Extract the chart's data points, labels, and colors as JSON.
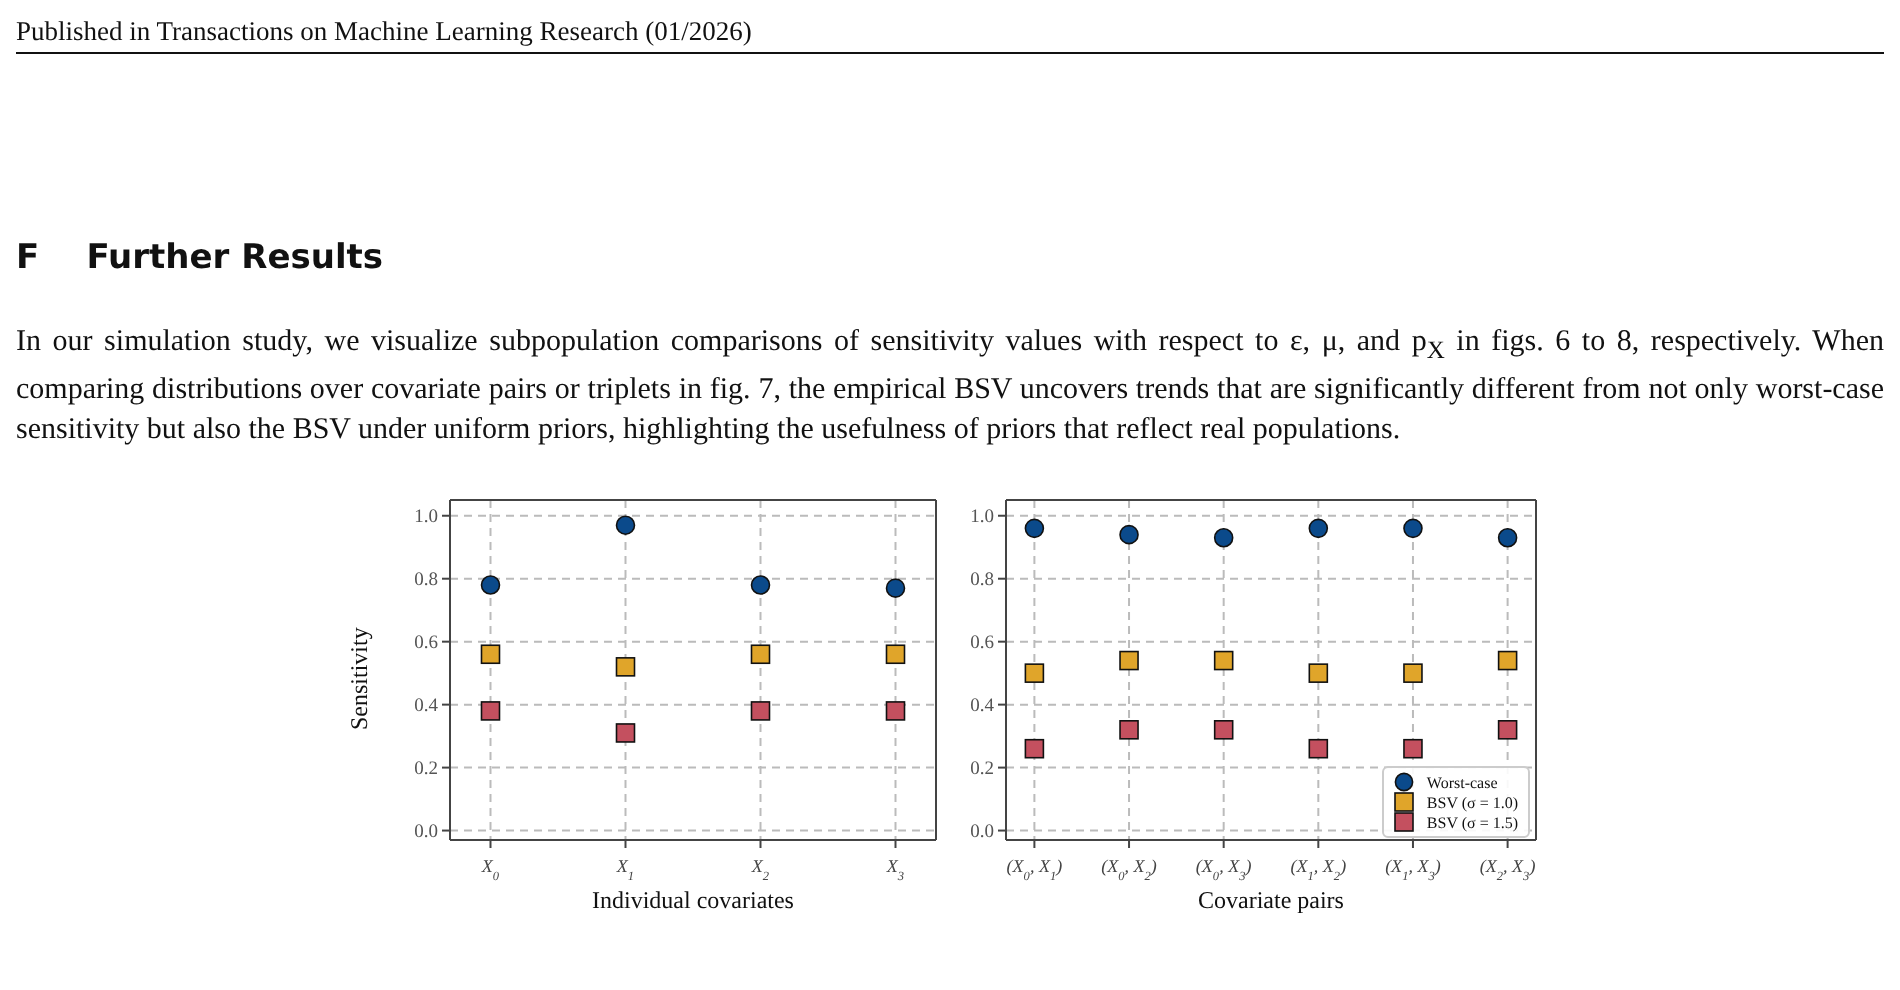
{
  "chart_data": [
    {
      "type": "scatter",
      "annotations": [
        "Published in Transactions on Machine Learning Research (01/2026)",
        "F    Further Results",
        "In our simulation study, we visualize subpopulation comparisons of sensitivity values with respect to ε, μ, and p$_{X}$ in figs. 6 to 8, respectively. When comparing distributions over covariate pairs or triplets in fig. 7, the empirical BSV uncovers trends that are significantly different from not only worst-case sensitivity but also the BSV under uniform priors, highlighting the usefulness of priors that reflect real populations."
      ],
      "xlabel": "Individual covariates",
      "ylabel": "Sensitivity",
      "categories": [
        "X$_{0}$",
        "X$_{1}$",
        "X$_{2}$",
        "X$_{3}$"
      ],
      "ylim": [
        -0.03,
        1.05
      ],
      "yticks": [
        {
          "value": 0,
          "label": "0.0"
        },
        {
          "value": 0.2,
          "label": "0.2"
        },
        {
          "value": 0.4,
          "label": "0.4"
        },
        {
          "value": 0.6,
          "label": "0.6"
        },
        {
          "value": 0.8,
          "label": "0.8"
        },
        {
          "value": 1,
          "label": "1.0"
        }
      ],
      "grid": true,
      "legend": false,
      "series": [
        {
          "color": "#0b4a8b",
          "marker": "circle",
          "values": [
            0.78,
            0.97,
            0.78,
            0.77
          ]
        },
        {
          "color": "#e0a52a",
          "marker": "square",
          "values": [
            0.56,
            0.52,
            0.56,
            0.56
          ]
        },
        {
          "color": "#c4505f",
          "marker": "square",
          "values": [
            0.38,
            0.31,
            0.38,
            0.38
          ]
        }
      ]
    },
    {
      "type": "scatter",
      "xlabel": "Covariate pairs",
      "categories": [
        "(X$_{0}$, X$_{1}$)",
        "(X$_{0}$, X$_{2}$)",
        "(X$_{0}$, X$_{3}$)",
        "(X$_{1}$, X$_{2}$)",
        "(X$_{1}$, X$_{3}$)",
        "(X$_{2}$, X$_{3}$)"
      ],
      "ylim": [
        -0.03,
        1.05
      ],
      "yticks": [
        {
          "value": 0,
          "label": "0.0"
        },
        {
          "value": 0.2,
          "label": "0.2"
        },
        {
          "value": 0.4,
          "label": "0.4"
        },
        {
          "value": 0.6,
          "label": "0.6"
        },
        {
          "value": 0.8,
          "label": "0.8"
        },
        {
          "value": 1,
          "label": "1.0"
        }
      ],
      "grid": true,
      "legend": "bottom right",
      "series": [
        {
          "name": "Worst-case",
          "color": "#0b4a8b",
          "marker": "circle",
          "values": [
            0.96,
            0.94,
            0.93,
            0.96,
            0.96,
            0.93
          ]
        },
        {
          "name": "BSV (σ = 1.0)",
          "color": "#e0a52a",
          "marker": "square",
          "values": [
            0.5,
            0.54,
            0.54,
            0.5,
            0.5,
            0.54
          ]
        },
        {
          "name": "BSV (σ = 1.5)",
          "color": "#c4505f",
          "marker": "square",
          "values": [
            0.26,
            0.32,
            0.32,
            0.26,
            0.26,
            0.32
          ]
        }
      ]
    }
  ]
}
